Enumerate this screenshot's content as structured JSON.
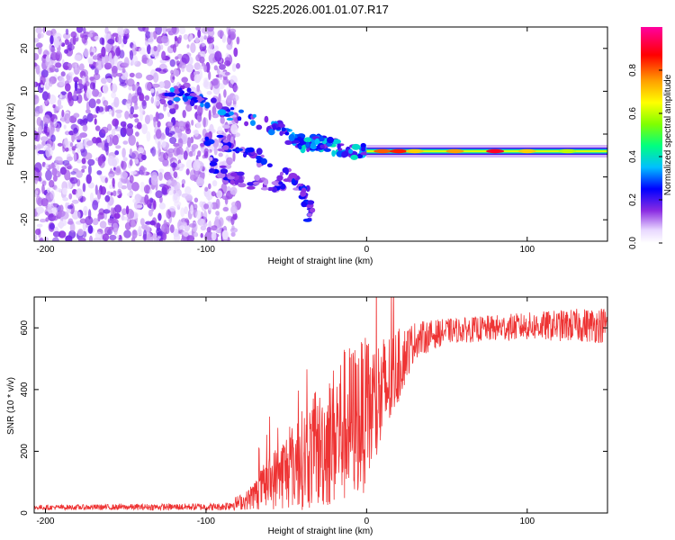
{
  "title": "S225.2026.001.01.07.R17",
  "chart_data": [
    {
      "type": "heatmap",
      "xlabel": "Height of straight line (km)",
      "ylabel": "Frequency (Hz)",
      "xlim": [
        -207,
        150
      ],
      "ylim": [
        -25,
        25
      ],
      "xticks": [
        -200,
        -100,
        0,
        100
      ],
      "yticks": [
        -20,
        -10,
        0,
        10,
        20
      ],
      "colorbar": {
        "label": "Normalized spectral amplitude",
        "range": [
          0.0,
          1.0
        ],
        "ticks": [
          0.0,
          0.2,
          0.4,
          0.6,
          0.8
        ]
      },
      "features": [
        {
          "name": "noise-region",
          "x_range": [
            -207,
            -80
          ],
          "y_range": [
            -25,
            25
          ],
          "amplitude": 0.12
        },
        {
          "name": "upper-branch",
          "points": [
            [
              -130,
              8
            ],
            [
              -115,
              10
            ],
            [
              -100,
              7
            ],
            [
              -85,
              5
            ],
            [
              -70,
              3
            ],
            [
              -55,
              1
            ],
            [
              -45,
              -1
            ],
            [
              -35,
              -3
            ]
          ],
          "amplitude": 0.25
        },
        {
          "name": "middle-branch",
          "points": [
            [
              -100,
              -1
            ],
            [
              -85,
              -3
            ],
            [
              -70,
              -5
            ],
            [
              -55,
              -8
            ],
            [
              -45,
              -10
            ],
            [
              -38,
              -14
            ],
            [
              -35,
              -19
            ]
          ],
          "amplitude": 0.2
        },
        {
          "name": "lower-branch",
          "points": [
            [
              -100,
              -6
            ],
            [
              -85,
              -10
            ],
            [
              -75,
              -11
            ],
            [
              -60,
              -12
            ],
            [
              -50,
              -11
            ]
          ],
          "amplitude": 0.18
        },
        {
          "name": "merging-region",
          "points": [
            [
              -40,
              -3
            ],
            [
              -30,
              -2
            ],
            [
              -20,
              -3
            ],
            [
              -10,
              -4
            ],
            [
              0,
              -4
            ]
          ],
          "amplitude": 0.3
        },
        {
          "name": "main-line",
          "x_range": [
            0,
            150
          ],
          "frequency": -4,
          "amplitude": 0.9
        }
      ]
    },
    {
      "type": "line",
      "xlabel": "Height of straight line (km)",
      "ylabel": "SNR (10 * v/v)",
      "xlim": [
        -207,
        150
      ],
      "ylim": [
        0,
        700
      ],
      "xticks": [
        -200,
        -100,
        0,
        100
      ],
      "yticks": [
        0,
        200,
        400,
        600
      ],
      "color": "#ee3333",
      "envelope": [
        {
          "x": -207,
          "mean": 18,
          "spread": 8
        },
        {
          "x": -90,
          "mean": 20,
          "spread": 12
        },
        {
          "x": -75,
          "mean": 40,
          "spread": 30
        },
        {
          "x": -60,
          "mean": 100,
          "spread": 90
        },
        {
          "x": -45,
          "mean": 160,
          "spread": 150
        },
        {
          "x": -30,
          "mean": 200,
          "spread": 190
        },
        {
          "x": -15,
          "mean": 280,
          "spread": 260
        },
        {
          "x": 0,
          "mean": 320,
          "spread": 250
        },
        {
          "x": 10,
          "mean": 380,
          "spread": 200
        },
        {
          "x": 20,
          "mean": 480,
          "spread": 120
        },
        {
          "x": 30,
          "mean": 560,
          "spread": 60
        },
        {
          "x": 50,
          "mean": 590,
          "spread": 40
        },
        {
          "x": 100,
          "mean": 605,
          "spread": 45
        },
        {
          "x": 150,
          "mean": 610,
          "spread": 60
        }
      ]
    }
  ]
}
